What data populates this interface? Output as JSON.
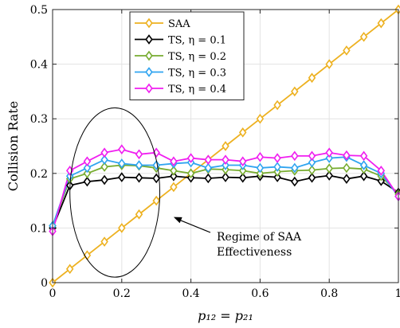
{
  "chart_data": {
    "type": "line",
    "xlabel": "p₁₂ = p₂₁",
    "ylabel": "Collision Rate",
    "xlim": [
      0,
      1
    ],
    "ylim": [
      0,
      0.5
    ],
    "xticks": [
      0,
      0.2,
      0.4,
      0.6,
      0.8,
      1
    ],
    "xtick_labels": [
      "0",
      "0.2",
      "0.4",
      "0.6",
      "0.8",
      "1"
    ],
    "yticks": [
      0,
      0.1,
      0.2,
      0.3,
      0.4,
      0.5
    ],
    "ytick_labels": [
      "0",
      "0.1",
      "0.2",
      "0.3",
      "0.4",
      "0.5"
    ],
    "grid": true,
    "legend_position": "top-center",
    "marker": "diamond",
    "x": [
      0,
      0.05,
      0.1,
      0.15,
      0.2,
      0.25,
      0.3,
      0.35,
      0.4,
      0.45,
      0.5,
      0.55,
      0.6,
      0.65,
      0.7,
      0.75,
      0.8,
      0.85,
      0.9,
      0.95,
      1.0
    ],
    "series": [
      {
        "name": "SAA",
        "color": "#EDB120",
        "values": [
          0.0,
          0.025,
          0.05,
          0.075,
          0.1,
          0.125,
          0.15,
          0.175,
          0.2,
          0.225,
          0.25,
          0.275,
          0.3,
          0.325,
          0.35,
          0.375,
          0.4,
          0.425,
          0.45,
          0.475,
          0.5
        ]
      },
      {
        "name": "TS, η = 0.1",
        "color": "#000000",
        "values": [
          0.1,
          0.178,
          0.185,
          0.188,
          0.193,
          0.192,
          0.191,
          0.195,
          0.192,
          0.191,
          0.193,
          0.192,
          0.195,
          0.193,
          0.185,
          0.192,
          0.196,
          0.19,
          0.195,
          0.186,
          0.165
        ]
      },
      {
        "name": "TS, η = 0.2",
        "color": "#77AC30",
        "values": [
          0.104,
          0.19,
          0.2,
          0.212,
          0.215,
          0.214,
          0.21,
          0.205,
          0.2,
          0.208,
          0.207,
          0.205,
          0.2,
          0.203,
          0.205,
          0.206,
          0.209,
          0.21,
          0.208,
          0.195,
          0.162
        ]
      },
      {
        "name": "TS, η = 0.3",
        "color": "#2FA4F0",
        "values": [
          0.104,
          0.195,
          0.21,
          0.225,
          0.218,
          0.215,
          0.215,
          0.218,
          0.22,
          0.21,
          0.215,
          0.215,
          0.21,
          0.212,
          0.21,
          0.22,
          0.228,
          0.23,
          0.215,
          0.2,
          0.158
        ]
      },
      {
        "name": "TS, η = 0.4",
        "color": "#F01EF0",
        "values": [
          0.094,
          0.205,
          0.222,
          0.238,
          0.244,
          0.235,
          0.238,
          0.222,
          0.228,
          0.225,
          0.225,
          0.222,
          0.23,
          0.228,
          0.232,
          0.232,
          0.238,
          0.233,
          0.232,
          0.205,
          0.158
        ]
      }
    ],
    "annotation": {
      "lines": [
        "Regime of SAA",
        "Effectiveness"
      ],
      "ellipse_center": [
        0.18,
        0.165
      ],
      "ellipse_radii": [
        0.13,
        0.155
      ],
      "arrow_tip": [
        0.35,
        0.12
      ]
    }
  }
}
